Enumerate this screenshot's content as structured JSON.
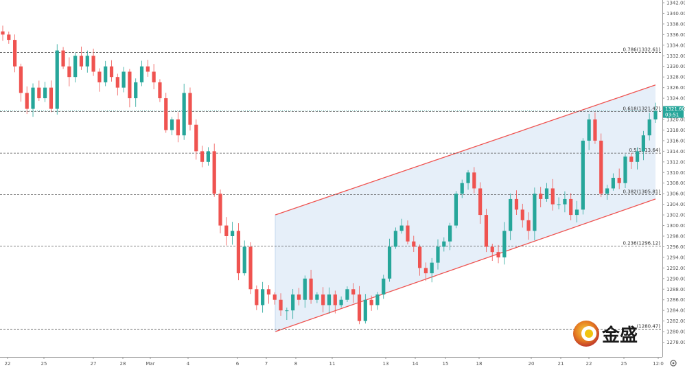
{
  "chart_data": {
    "type": "candlestick",
    "instrument_note": "",
    "colors": {
      "up": "#26a69a",
      "down": "#ef5350",
      "channel_line": "#ef5350",
      "channel_fill": "#dde9f7",
      "fib_line": "#555555",
      "last_price": "#26a69a"
    },
    "y_axis": {
      "range": [
        1276,
        1342
      ],
      "tick_labels": [
        "1278.00",
        "1280.00",
        "1282.00",
        "1284.00",
        "1286.00",
        "1288.00",
        "1290.00",
        "1292.00",
        "1294.00",
        "1296.00",
        "1298.00",
        "1300.00",
        "1302.00",
        "1304.00",
        "1306.00",
        "1308.00",
        "1310.00",
        "1312.00",
        "1314.00",
        "1316.00",
        "1318.00",
        "1320.00",
        "1322.00",
        "1324.00",
        "1326.00",
        "1328.00",
        "1330.00",
        "1332.00",
        "1334.00",
        "1336.00",
        "1338.00",
        "1340.00",
        "1342.00"
      ]
    },
    "x_axis": {
      "tick_labels": [
        "22",
        "25",
        "27",
        "28",
        "Mar",
        "4",
        "6",
        "7",
        "8",
        "11",
        "13",
        "14",
        "15",
        "18",
        "20",
        "21",
        "22",
        "25",
        "12:0"
      ]
    },
    "fib_levels": [
      {
        "label": "0.786(1332.61)",
        "value": 1332.61
      },
      {
        "label": "0.618(1321.47)",
        "value": 1321.47
      },
      {
        "label": "0.5(1313.64)",
        "value": 1313.64
      },
      {
        "label": "0.382(1305.81)",
        "value": 1305.81
      },
      {
        "label": "0.236(1296.12)",
        "value": 1296.12
      },
      {
        "label": "(1280.47)",
        "value": 1280.47
      }
    ],
    "last_price": {
      "label": "1321.60",
      "countdown": "03:51",
      "value": 1321.6
    },
    "closes": [
      1336,
      1335,
      1330,
      1325,
      1322,
      1326,
      1324,
      1326,
      1322,
      1333,
      1330,
      1328,
      1332,
      1330,
      1332,
      1329,
      1327,
      1330,
      1328,
      1326,
      1329,
      1324,
      1327,
      1330,
      1329,
      1327,
      1324,
      1318,
      1320,
      1317,
      1325,
      1319,
      1314,
      1312,
      1314,
      1306,
      1300,
      1298,
      1299,
      1291,
      1296,
      1288,
      1285,
      1288,
      1287,
      1286,
      1284,
      1284,
      1287,
      1286,
      1290,
      1286,
      1287,
      1285,
      1287,
      1285,
      1286,
      1288,
      1287,
      1282,
      1286,
      1285,
      1287,
      1290,
      1296,
      1299,
      1300,
      1297,
      1296,
      1292,
      1291,
      1293,
      1296,
      1297,
      1300,
      1306,
      1308,
      1310,
      1307,
      1302,
      1296,
      1295,
      1294,
      1299,
      1305,
      1303,
      1301,
      1299,
      1306,
      1305,
      1307,
      1304,
      1304,
      1305,
      1302,
      1303,
      1316,
      1320,
      1316,
      1306,
      1307,
      1309,
      1308,
      1313,
      1312,
      1314,
      1317,
      1320,
      1321.6
    ],
    "channel": {
      "upper": {
        "start": 1302,
        "end": 1326.5
      },
      "lower": {
        "start": 1280,
        "end": 1305
      }
    }
  },
  "logo": {
    "text": "金盛"
  }
}
